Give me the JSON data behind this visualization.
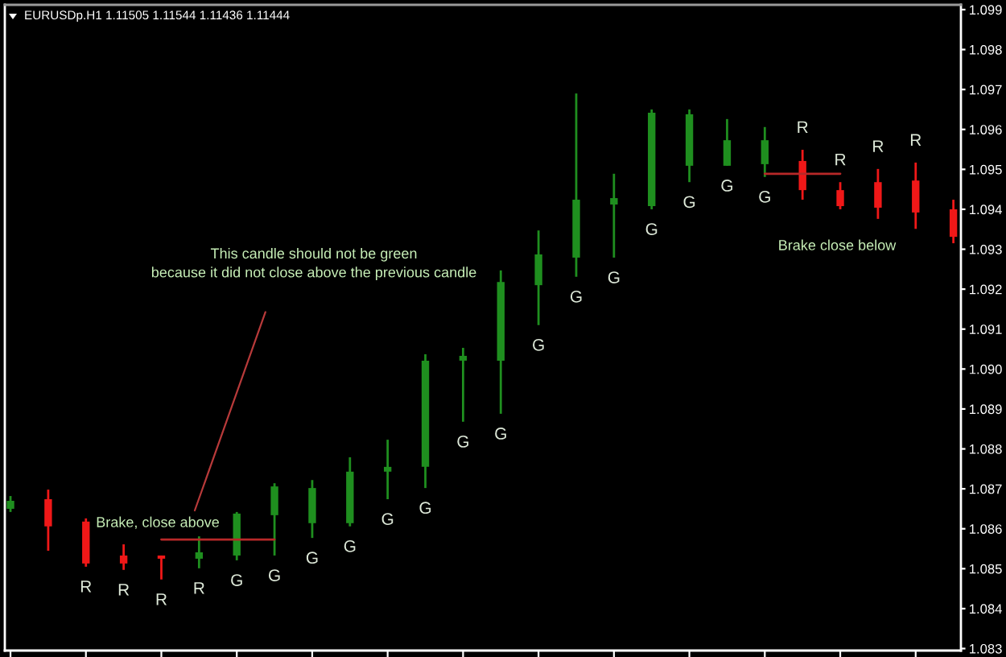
{
  "chart_data": {
    "type": "candlestick",
    "title": "EURUSDp.H1 1.11505 1.11544 1.11436 1.11444",
    "categories": [
      null,
      null,
      null,
      null,
      null,
      null,
      null,
      null,
      null,
      null,
      null,
      null,
      null,
      null,
      null,
      null,
      null,
      null,
      null,
      null,
      null,
      null,
      null,
      null,
      null,
      null
    ],
    "ohlc": [
      [
        1.0865,
        1.08682,
        1.08642,
        1.0867
      ],
      [
        1.08674,
        1.08698,
        1.08545,
        1.08606
      ],
      [
        1.08618,
        1.08626,
        1.08505,
        1.08513
      ],
      [
        1.08533,
        1.08561,
        1.08497,
        1.08513
      ],
      [
        1.08533,
        1.08533,
        1.08473,
        1.08525
      ],
      [
        1.08525,
        1.08581,
        1.08501,
        1.08541
      ],
      [
        1.08533,
        1.08642,
        1.08521,
        1.08638
      ],
      [
        1.08634,
        1.08714,
        1.08533,
        1.08706
      ],
      [
        1.08614,
        1.08722,
        1.08577,
        1.08702
      ],
      [
        1.08614,
        1.08779,
        1.08606,
        1.08743
      ],
      [
        1.08743,
        1.08823,
        1.08674,
        1.08755
      ],
      [
        1.08755,
        1.09037,
        1.08702,
        1.09021
      ],
      [
        1.09021,
        1.09053,
        1.08868,
        1.09033
      ],
      [
        1.09021,
        1.09247,
        1.08888,
        1.09218
      ],
      [
        1.0921,
        1.09347,
        1.0911,
        1.09287
      ],
      [
        1.09279,
        1.0969,
        1.09231,
        1.09424
      ],
      [
        1.09412,
        1.09489,
        1.09279,
        1.09428
      ],
      [
        1.09408,
        1.0965,
        1.094,
        1.09642
      ],
      [
        1.09509,
        1.0965,
        1.09468,
        1.09638
      ],
      [
        1.09509,
        1.09626,
        1.09509,
        1.09573
      ],
      [
        1.09513,
        1.09606,
        1.09481,
        1.09573
      ],
      [
        1.09521,
        1.09549,
        1.09424,
        1.09448
      ],
      [
        1.09448,
        1.09468,
        1.094,
        1.09408
      ],
      [
        1.09468,
        1.09501,
        1.09376,
        1.09404
      ],
      [
        1.09472,
        1.09517,
        1.09351,
        1.09392
      ],
      [
        1.094,
        1.09424,
        1.09315,
        1.09331
      ]
    ],
    "colors": [
      "#1f8f1f",
      "#f01818",
      "#f01818",
      "#f01818",
      "#f01818",
      "#1f8f1f",
      "#1f8f1f",
      "#1f8f1f",
      "#1f8f1f",
      "#1f8f1f",
      "#1f8f1f",
      "#1f8f1f",
      "#1f8f1f",
      "#1f8f1f",
      "#1f8f1f",
      "#1f8f1f",
      "#1f8f1f",
      "#1f8f1f",
      "#1f8f1f",
      "#1f8f1f",
      "#1f8f1f",
      "#f01818",
      "#f01818",
      "#f01818",
      "#f01818",
      "#f01818"
    ],
    "value_labels": [
      null,
      null,
      "R",
      "R",
      "R",
      "R",
      "G",
      "G",
      "G",
      "G",
      "G",
      "G",
      "G",
      "G",
      "G",
      "G",
      "G",
      "G",
      "G",
      "G",
      "G",
      "R",
      "R",
      "R",
      "R",
      null
    ],
    "series": [
      {
        "type": "line",
        "color": "#b82828",
        "values": [
          null,
          null,
          null,
          null,
          1.08573,
          1.08573,
          1.08573,
          1.08573,
          null,
          null,
          null,
          null,
          null,
          null,
          null,
          null,
          null,
          null,
          null,
          null,
          null,
          null,
          null,
          null,
          null,
          null
        ]
      },
      {
        "type": "line",
        "color": "#b82828",
        "values": [
          null,
          null,
          null,
          null,
          null,
          null,
          null,
          null,
          null,
          null,
          null,
          null,
          null,
          null,
          null,
          null,
          null,
          null,
          null,
          null,
          1.09489,
          1.09489,
          1.09489,
          null,
          null,
          null
        ]
      }
    ],
    "annotations": [
      "This candle should not be green\nbecause it did not close above the previous candle",
      "Brake, close above",
      "Brake close below"
    ],
    "ylim": [
      1.08295,
      1.09912
    ],
    "yticks": [
      1.083,
      1.084,
      1.085,
      1.086,
      1.087,
      1.088,
      1.089,
      {
        "value": 1.09,
        "label": "1.090"
      },
      1.091,
      1.092,
      1.093,
      1.094,
      1.095,
      1.096,
      1.097,
      1.098,
      1.099
    ]
  }
}
